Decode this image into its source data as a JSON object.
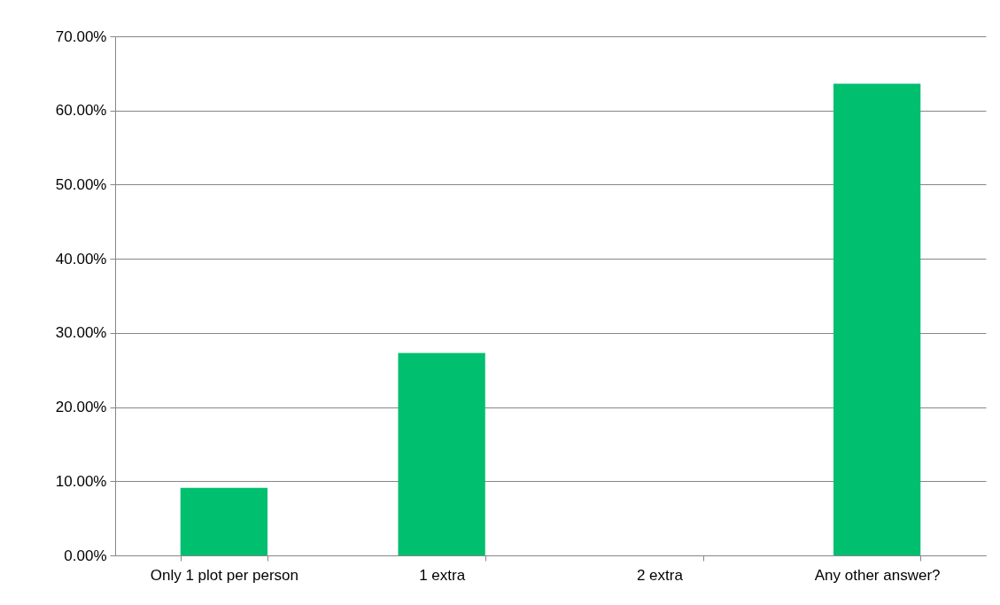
{
  "chart_data": {
    "type": "bar",
    "categories": [
      "Only 1 plot per person",
      "1 extra",
      "2 extra",
      "Any other answer?"
    ],
    "values": [
      9.1,
      27.3,
      0,
      63.6
    ],
    "color": "#00bf6f",
    "ylim": [
      0,
      70
    ],
    "yticks": [
      {
        "value": 0,
        "label": "0.00%"
      },
      {
        "value": 10,
        "label": "10.00%"
      },
      {
        "value": 20,
        "label": "20.00%"
      },
      {
        "value": 30,
        "label": "30.00%"
      },
      {
        "value": 40,
        "label": "40.00%"
      },
      {
        "value": 50,
        "label": "50.00%"
      },
      {
        "value": 60,
        "label": "60.00%"
      },
      {
        "value": 70,
        "label": "70.00%"
      }
    ],
    "grid": "y"
  }
}
